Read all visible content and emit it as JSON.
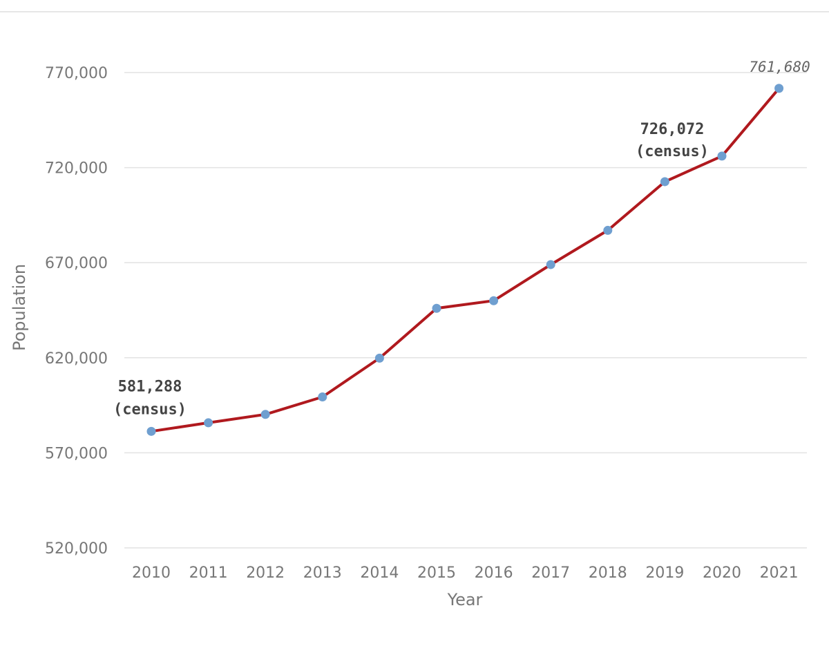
{
  "chart_data": {
    "type": "line",
    "xlabel": "Year",
    "ylabel": "Population",
    "x": [
      "2010",
      "2011",
      "2012",
      "2013",
      "2014",
      "2015",
      "2016",
      "2017",
      "2018",
      "2019",
      "2020",
      "2021"
    ],
    "series": [
      {
        "values": [
          581288,
          585800,
          590200,
          599400,
          619800,
          646000,
          650000,
          669000,
          687000,
          712600,
          726072,
          761680
        ]
      }
    ],
    "ylim": [
      520000,
      770000
    ],
    "yticks": [
      520000,
      570000,
      620000,
      670000,
      720000,
      770000
    ],
    "ytick_labels": [
      "520,000",
      "570,000",
      "620,000",
      "670,000",
      "720,000",
      "770,000"
    ],
    "grid": true,
    "line_color": "#b0191e",
    "marker_color": "#6f9fd0",
    "grid_color": "#e2e2e2",
    "annotations": [
      {
        "x": "2010",
        "value_label": "581,288",
        "note": "(census)",
        "style": "bold"
      },
      {
        "x": "2020",
        "value_label": "726,072",
        "note": "(census)",
        "style": "bold"
      },
      {
        "x": "2021",
        "value_label": "761,680",
        "note": "",
        "style": "italic"
      }
    ]
  }
}
